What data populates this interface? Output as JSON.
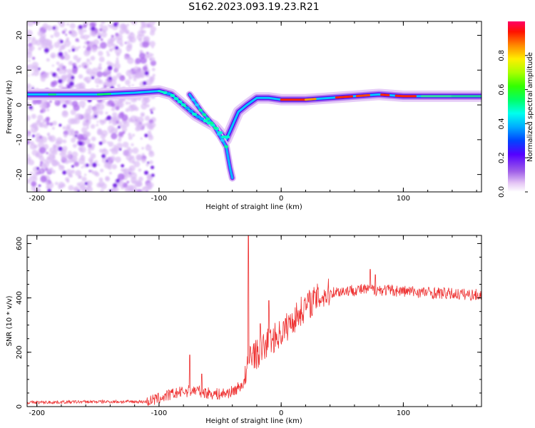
{
  "title": "S162.2023.093.19.23.R21",
  "chart_data": [
    {
      "type": "heatmap",
      "xlabel": "Height of straight line (km)",
      "ylabel": "Frequency (Hz)",
      "xlim": [
        -208,
        164
      ],
      "ylim": [
        -25,
        24
      ],
      "xticks": [
        -200,
        -100,
        0,
        100
      ],
      "yticks": [
        -20,
        -10,
        0,
        10,
        20
      ],
      "colorbar": {
        "label": "Normalized spectral amplitude",
        "range": [
          0,
          1
        ],
        "ticks": [
          "0.0",
          "0.2",
          "0.4",
          "0.6",
          "0.8"
        ],
        "tick_values": [
          0,
          0.2,
          0.4,
          0.6,
          0.8
        ]
      },
      "features": [
        {
          "name": "carrier",
          "points": [
            [
              -208,
              3
            ],
            [
              -150,
              3
            ],
            [
              -120,
              3.5
            ],
            [
              -100,
              4
            ],
            [
              -90,
              3
            ],
            [
              -80,
              0
            ],
            [
              -70,
              -3
            ],
            [
              -55,
              -6
            ],
            [
              -45,
              -10
            ],
            [
              -40,
              -6
            ],
            [
              -35,
              -2
            ],
            [
              -28,
              0
            ],
            [
              -20,
              2
            ],
            [
              -10,
              2
            ],
            [
              0,
              1.5
            ],
            [
              20,
              1.5
            ],
            [
              40,
              2
            ],
            [
              80,
              3
            ],
            [
              100,
              2.5
            ],
            [
              164,
              2.5
            ]
          ]
        },
        {
          "name": "branch",
          "points": [
            [
              -75,
              3
            ],
            [
              -65,
              -2
            ],
            [
              -55,
              -6
            ],
            [
              -45,
              -12
            ],
            [
              -42,
              -18
            ],
            [
              -40,
              -21
            ]
          ]
        }
      ]
    },
    {
      "type": "line",
      "xlabel": "Height of straight line (km)",
      "ylabel": "SNR (10 * v/v)",
      "xlim": [
        -208,
        164
      ],
      "ylim": [
        0,
        630
      ],
      "xticks": [
        -200,
        -100,
        0,
        100
      ],
      "yticks": [
        0,
        200,
        400,
        600
      ],
      "color": "#ee3333",
      "anchors": [
        [
          -208,
          15
        ],
        [
          -150,
          18
        ],
        [
          -110,
          18
        ],
        [
          -100,
          30
        ],
        [
          -90,
          45
        ],
        [
          -80,
          55
        ],
        [
          -70,
          60
        ],
        [
          -60,
          50
        ],
        [
          -50,
          45
        ],
        [
          -40,
          55
        ],
        [
          -35,
          70
        ],
        [
          -30,
          90
        ],
        [
          -25,
          200
        ],
        [
          -20,
          190
        ],
        [
          -10,
          240
        ],
        [
          0,
          270
        ],
        [
          10,
          320
        ],
        [
          20,
          370
        ],
        [
          30,
          400
        ],
        [
          40,
          420
        ],
        [
          60,
          430
        ],
        [
          80,
          430
        ],
        [
          100,
          425
        ],
        [
          140,
          415
        ],
        [
          164,
          410
        ]
      ],
      "spikes": [
        [
          -75,
          190
        ],
        [
          -65,
          120
        ],
        [
          -27,
          630
        ],
        [
          -17,
          305
        ],
        [
          -10,
          390
        ],
        [
          73,
          505
        ],
        [
          77,
          485
        ]
      ]
    }
  ]
}
